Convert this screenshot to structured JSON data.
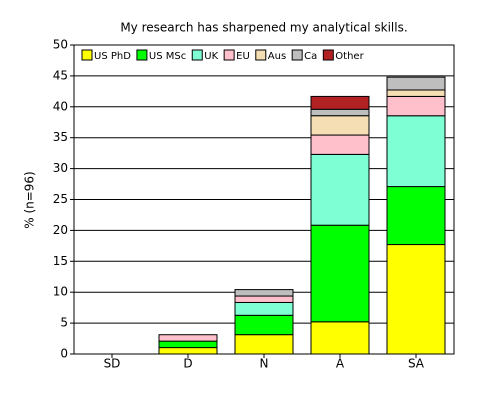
{
  "chart_data": {
    "type": "stacked-bar",
    "title": "My research has sharpened my analytical skills.",
    "y_label": "% (n=96)",
    "categories": [
      "SD",
      "D",
      "N",
      "A",
      "SA"
    ],
    "series": [
      {
        "name": "US PhD",
        "color": "#ffff00",
        "values": [
          0,
          1.04,
          3.13,
          5.21,
          17.71
        ]
      },
      {
        "name": "US MSc",
        "color": "#00ff00",
        "values": [
          0,
          1.04,
          3.13,
          15.63,
          9.38
        ]
      },
      {
        "name": "UK",
        "color": "#7fffd4",
        "values": [
          0,
          0,
          2.08,
          11.46,
          11.46
        ]
      },
      {
        "name": "EU",
        "color": "#ffc0cb",
        "values": [
          0,
          1.04,
          1.04,
          3.13,
          3.13
        ]
      },
      {
        "name": "Aus",
        "color": "#f5deb3",
        "values": [
          0,
          0,
          0,
          3.13,
          1.04
        ]
      },
      {
        "name": "Ca",
        "color": "#bebebe",
        "values": [
          0,
          0,
          1.04,
          1.04,
          2.08
        ]
      },
      {
        "name": "Other",
        "color": "#b22222",
        "values": [
          0,
          0,
          0,
          2.08,
          0
        ]
      }
    ],
    "ylim": [
      0,
      50
    ],
    "yticks": [
      0,
      5,
      10,
      15,
      20,
      25,
      30,
      35,
      40,
      45,
      50
    ],
    "grid": true
  }
}
